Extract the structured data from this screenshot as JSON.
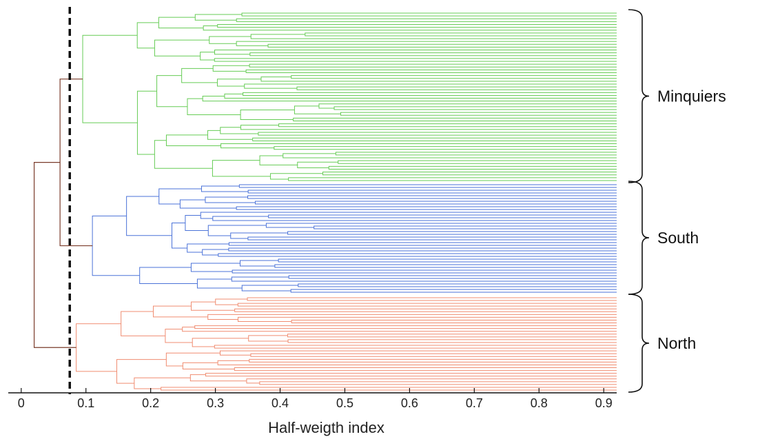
{
  "chart_data": {
    "type": "dendrogram",
    "orientation": "horizontal",
    "xlabel": "Half-weigth index",
    "xlim": [
      -0.02,
      0.92
    ],
    "xticks": [
      "0",
      "0.1",
      "0.2",
      "0.3",
      "0.4",
      "0.5",
      "0.6",
      "0.7",
      "0.8",
      "0.9"
    ],
    "cut_threshold": 0.075,
    "grid": false,
    "clusters": [
      {
        "name": "Minquiers",
        "color": "#66cc55",
        "root_join": 0.095,
        "leaf_count": 60
      },
      {
        "name": "South",
        "color": "#4a72d8",
        "root_join": 0.11,
        "leaf_count": 40
      },
      {
        "name": "North",
        "color": "#f08c70",
        "root_join": 0.085,
        "leaf_count": 34
      }
    ],
    "inter_cluster_links": [
      {
        "joins": [
          "Minquiers",
          "South"
        ],
        "height": 0.06
      },
      {
        "joins": [
          "North",
          "Minquiers+South"
        ],
        "height": 0.02
      }
    ],
    "link_color": "#7a3b2a"
  }
}
